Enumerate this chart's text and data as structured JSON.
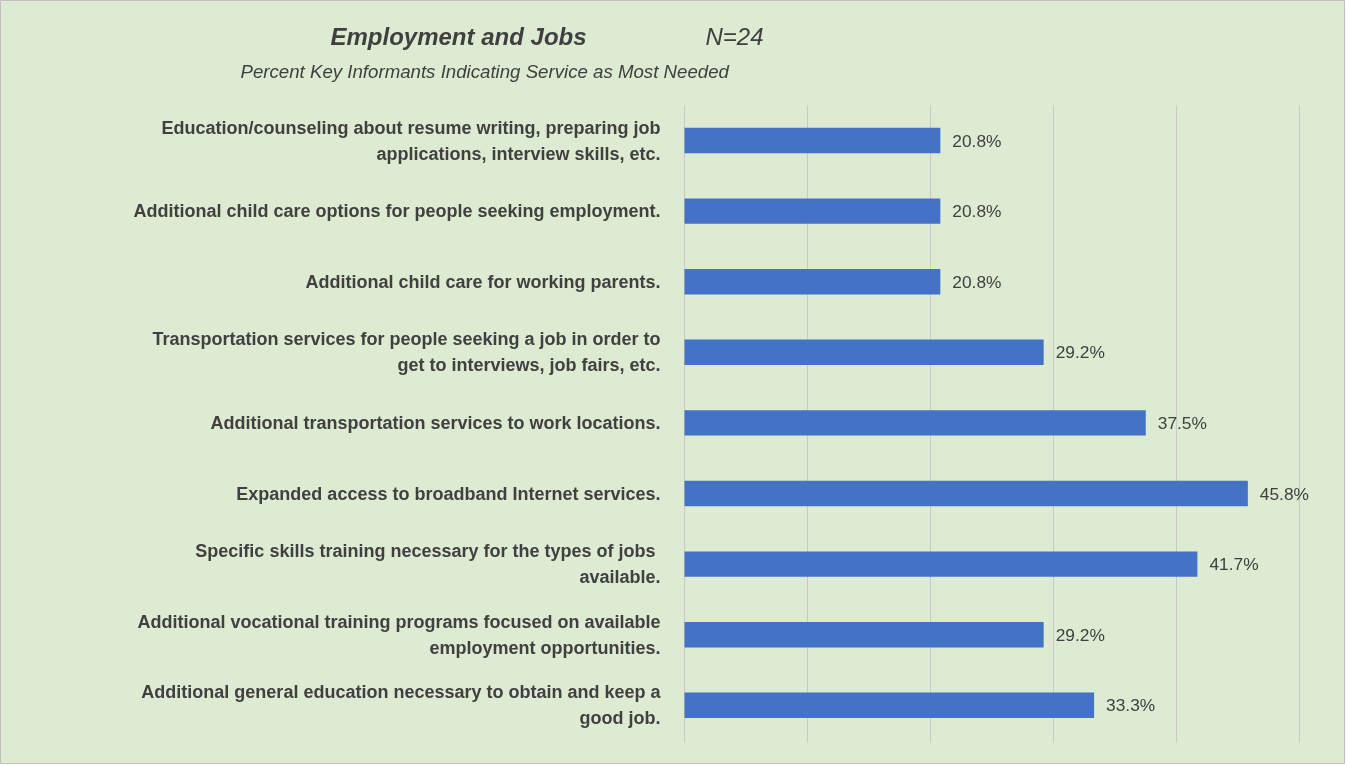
{
  "chart_data": {
    "type": "bar",
    "orientation": "horizontal",
    "title": "Employment and Jobs",
    "subtitle": "Percent Key Informants Indicating Service as Most Needed",
    "annotations": [
      "N=24"
    ],
    "categories": [
      "Education/counseling about resume writing, preparing job applications, interview skills, etc.",
      "Additional child care options for people seeking employment.",
      "Additional child care for working parents.",
      "Transportation services for people seeking a job in order to get to interviews, job fairs, etc.",
      "Additional transportation services to work locations.",
      "Expanded access to broadband Internet services.",
      "Specific skills training necessary for the types of  jobs available.",
      "Additional vocational training programs focused on available employment opportunities.",
      "Additional general education necessary to obtain and keep a good job."
    ],
    "values": [
      20.8,
      20.8,
      20.8,
      29.2,
      37.5,
      45.8,
      41.7,
      29.2,
      33.3
    ],
    "value_labels": [
      "20.8%",
      "20.8%",
      "20.8%",
      "29.2%",
      "37.5%",
      "45.8%",
      "41.7%",
      "29.2%",
      "33.3%"
    ],
    "color": "#4472c4",
    "xlim": [
      0,
      50
    ],
    "xticks": [
      {
        "value": 0,
        "label": null
      },
      {
        "value": 10,
        "label": null
      },
      {
        "value": 20,
        "label": null
      },
      {
        "value": 30,
        "label": null
      },
      {
        "value": 40,
        "label": null
      },
      {
        "value": 50,
        "label": null
      }
    ],
    "grid": "x",
    "tick_labels": "y",
    "legend": false
  }
}
